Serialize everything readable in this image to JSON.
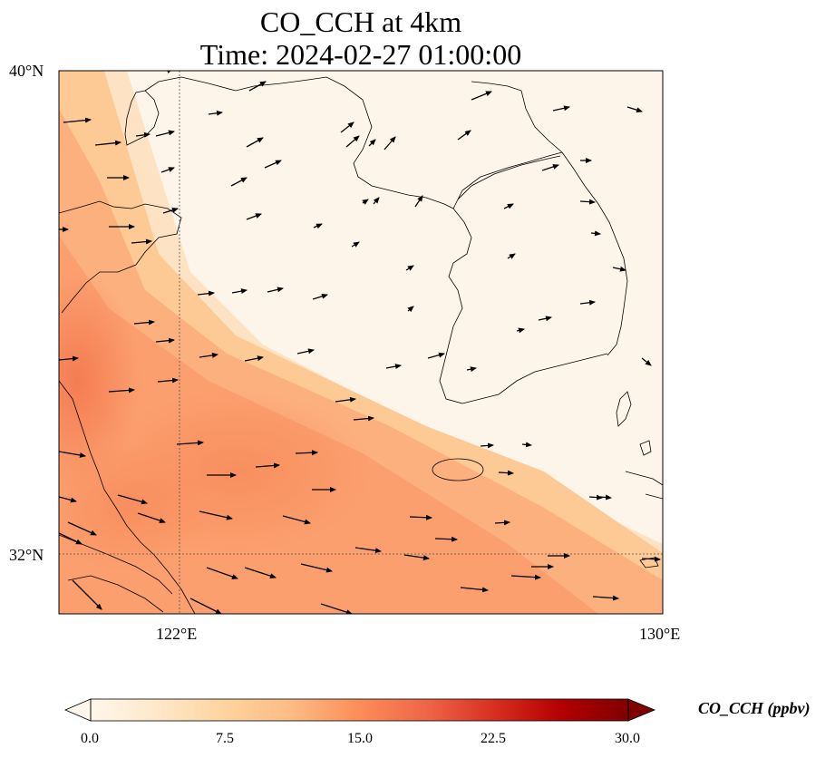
{
  "title": "CO_CCH at 4km",
  "subtitle": "Time: 2024-02-27 01:00:00",
  "map": {
    "variable": "CO_CCH",
    "height": "4km",
    "lon_range": [
      120,
      130
    ],
    "lat_range": [
      31,
      40
    ],
    "lon_ticks": [
      {
        "value": 122,
        "label": "122°E"
      },
      {
        "value": 130,
        "label": "130°E"
      }
    ],
    "lat_ticks": [
      {
        "value": 40,
        "label": "40°N"
      },
      {
        "value": 32,
        "label": "32°N"
      }
    ],
    "gridlines": "dotted at 122°E and 32°N",
    "features": [
      "coastlines",
      "wind-vectors",
      "CO-concentration-field"
    ],
    "field_pattern": "higher CO (about 8–14 ppbv) over the west and southwest, near 0 over the Korean peninsula and Yellow Sea north"
  },
  "colorbar": {
    "label": "CO_CCH (ppbv)",
    "colormap": "OrRd",
    "min": 0.0,
    "max": 30.0,
    "extend": "both",
    "ticks": [
      "0.0",
      "7.5",
      "15.0",
      "22.5",
      "30.0"
    ],
    "colors": [
      "#fff7ec",
      "#fee8c8",
      "#fdd49e",
      "#fdbb84",
      "#fc8d59",
      "#ef6548",
      "#d7301f",
      "#b30000",
      "#7f0000"
    ]
  }
}
